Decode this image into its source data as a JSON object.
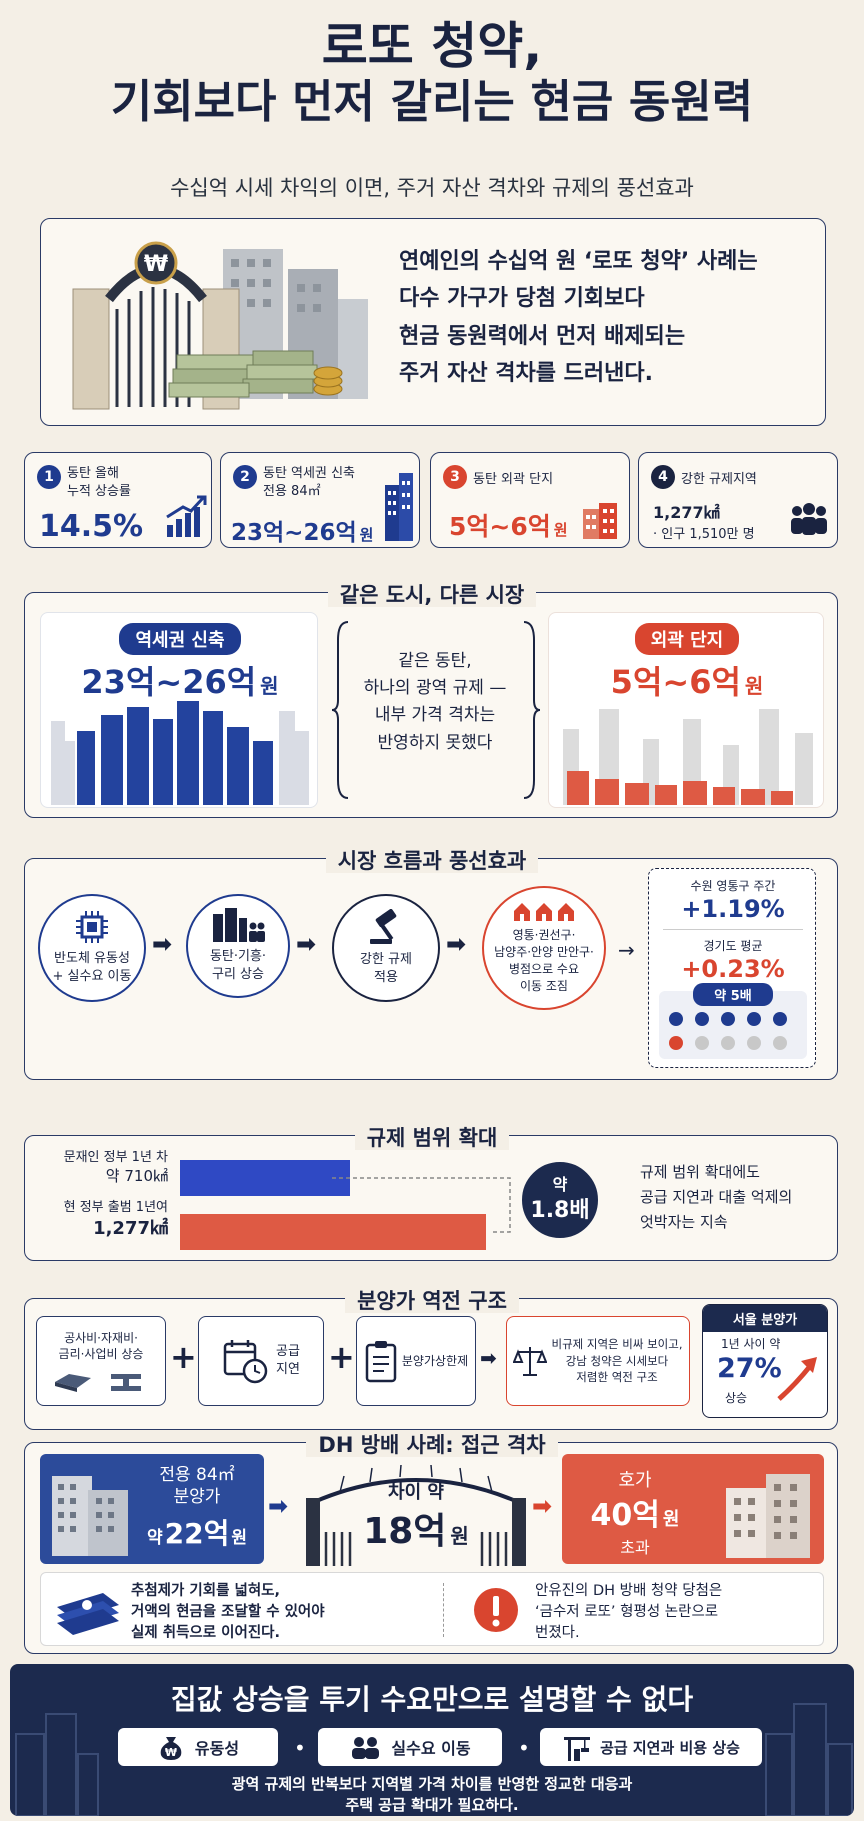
{
  "header": {
    "title_line1": "로또 청약,",
    "title_line2": "기회보다 먼저 갈리는 현금 동원력",
    "subtitle": "수십억 시세 차익의 이면, 주거 자산 격차와 규제의 풍선효과"
  },
  "intro": {
    "lines": [
      "연예인의 수십억 원 ‘로또 청약’ 사례는",
      "다수 가구가 당첨 기회보다",
      "현금 동원력에서 먼저 배제되는",
      "주거 자산 격차를 드러낸다."
    ]
  },
  "stats": [
    {
      "num": "1",
      "label_line1": "동탄 올해",
      "label_line2": "누적 상승률",
      "value": "14.5%",
      "color": "#1f3b8f"
    },
    {
      "num": "2",
      "label_line1": "동탄 역세권 신축",
      "label_line2": "전용 84㎡",
      "value_main": "23억~26억",
      "value_unit": "원",
      "color": "#1f3b8f"
    },
    {
      "num": "3",
      "label_line1": "동탄 외곽 단지",
      "value_main": "5억~6억",
      "value_unit": "원",
      "color": "#d9452f"
    },
    {
      "num": "4",
      "label_line1": "강한 규제지역",
      "area": "1,277㎢",
      "pop": "· 인구 1,510만 명",
      "color": "#1a2340"
    }
  ],
  "same_city": {
    "heading": "같은 도시, 다른 시장",
    "left_pill": "역세권 신축",
    "left_value": "23억~26억",
    "left_unit": "원",
    "middle_lines": [
      "같은 동탄,",
      "하나의 광역 규제 —",
      "내부 가격 격차는",
      "반영하지 못했다"
    ],
    "right_pill": "외곽 단지",
    "right_value": "5억~6억",
    "right_unit": "원"
  },
  "balloon": {
    "heading": "시장 흐름과 풍선효과",
    "steps": [
      {
        "lines": [
          "반도체 유동성",
          "+ 실수요 이동"
        ]
      },
      {
        "lines": [
          "동탄·기흥·",
          "구리 상승"
        ]
      },
      {
        "lines": [
          "강한 규제",
          "적용"
        ]
      },
      {
        "lines": [
          "영통·권선구·",
          "남양주·안양 만안구·",
          "병점으로 수요",
          "이동 조짐"
        ]
      }
    ],
    "compare": {
      "label1": "수원 영통구 주간",
      "value1": "+1.19%",
      "label2": "경기도 평균",
      "value2": "+0.23%",
      "ratio": "약 5배"
    }
  },
  "scope": {
    "heading": "규제 범위 확대",
    "bar1_label_line1": "문재인 정부 1년 차",
    "bar1_label_line2": "약 710㎢",
    "bar2_label_line1": "현 정부 출범 1년여",
    "bar2_label_line2": "1,277㎢",
    "ratio_line1": "약",
    "ratio_line2": "1.8배",
    "note_lines": [
      "규제 범위 확대에도",
      "공급 지연과 대출 억제의",
      "엇박자는 지속"
    ],
    "bar1_fraction": 0.556,
    "bar2_fraction": 1.0
  },
  "reversal": {
    "heading": "분양가 역전 구조",
    "box1_lines": [
      "공사비·자재비·",
      "금리·사업비 상승"
    ],
    "box2_lines": [
      "공급",
      "지연"
    ],
    "box3": "분양가상한제",
    "box4_lines": [
      "비규제 지역은 비싸 보이고,",
      "강남 청약은 시세보다",
      "저렴한 역전 구조"
    ],
    "seoul_title": "서울 분양가",
    "seoul_line1": "1년 사이 약",
    "seoul_value": "27%",
    "seoul_line3": "상승",
    "plus": "+"
  },
  "dh": {
    "heading": "DH 방배 사례: 접근 격차",
    "left_lines": [
      "전용 84㎡",
      "분양가"
    ],
    "left_prefix": "약",
    "left_value": "22억",
    "left_unit": "원",
    "gap_line1": "차이 약",
    "gap_value": "18억",
    "gap_unit": "원",
    "right_line1": "호가",
    "right_value": "40억",
    "right_unit": "원",
    "right_line3": "초과",
    "note_left": [
      "추첨제가 기회를 넓혀도,",
      "거액의 현금을 조달할 수 있어야",
      "실제 취득으로 이어진다."
    ],
    "note_right": [
      "안유진의 DH 방배 청약 당첨은",
      "‘금수저 로또’ 형평성 논란으로",
      "번졌다."
    ]
  },
  "footer": {
    "title": "집값 상승을 투기 수요만으로 설명할 수 없다",
    "chips": [
      "유동성",
      "실수요 이동",
      "공급 지연과 비용 상승"
    ],
    "bottom_lines": [
      "광역 규제의 반복보다 지역별 가격 차이를 반영한 정교한 대응과",
      "주택 공급 확대가 필요하다."
    ]
  },
  "colors": {
    "navy": "#1f3b8f",
    "red": "#d9452f",
    "dark": "#1a2340",
    "footer_bg": "#1c2a4e"
  }
}
